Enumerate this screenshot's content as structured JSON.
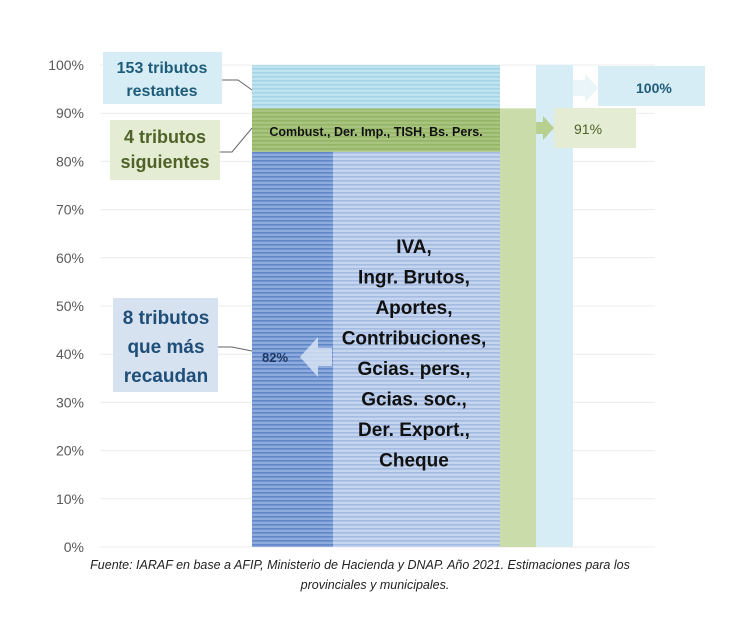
{
  "chart_data": {
    "type": "bar",
    "stacked": true,
    "ylim": [
      0,
      100
    ],
    "yticks": [
      "0%",
      "10%",
      "20%",
      "30%",
      "40%",
      "50%",
      "60%",
      "70%",
      "80%",
      "90%",
      "100%"
    ],
    "grid": true,
    "segments": [
      {
        "name": "8 tributos que más recaudan",
        "from": 0,
        "to": 82,
        "color": "#b4c7e7",
        "accent": "#8faadc"
      },
      {
        "name": "4 tributos siguientes",
        "from": 82,
        "to": 91,
        "color": "#a9c47f"
      },
      {
        "name": "153 tributos restantes",
        "from": 91,
        "to": 100,
        "color": "#bfe3ef"
      }
    ],
    "cumulative": [
      {
        "value": 91,
        "label": "91%",
        "color": "#c9dca9"
      },
      {
        "value": 100,
        "label": "100%",
        "color": "#d6edf5"
      }
    ],
    "annotations": {
      "restantes": [
        "153 tributos",
        "restantes"
      ],
      "siguientes": [
        "4 tributos",
        "siguientes"
      ],
      "siguientes_detail": "Combust., Der. Imp., TISH, Bs. Pers.",
      "top8": [
        "8 tributos",
        "que más",
        "recaudan"
      ],
      "top8_value": "82%",
      "top8_detail": [
        "IVA,",
        "Ingr. Brutos,",
        "Aportes,",
        "Contribuciones,",
        "Gcias. pers.,",
        "Gcias. soc.,",
        "Der. Export.,",
        "Cheque"
      ]
    },
    "source": [
      "Fuente: IARAF en base a AFIP, Ministerio de Hacienda y DNAP. Año 2021. Estimaciones para los",
      "provinciales y municipales."
    ]
  }
}
